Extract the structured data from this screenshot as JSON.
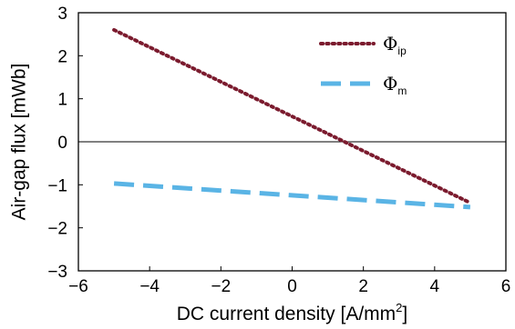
{
  "chart_data": {
    "type": "line",
    "title": "",
    "xlabel": "DC current density [A/mm",
    "xlabel_sup": "2",
    "xlabel_end": "]",
    "ylabel": "Air-gap flux [mWb]",
    "xlim": [
      -6,
      6
    ],
    "ylim": [
      -3,
      3
    ],
    "xticks": [
      -6,
      -4,
      -2,
      0,
      2,
      4,
      6
    ],
    "yticks": [
      -3,
      -2,
      -1,
      0,
      1,
      2,
      3
    ],
    "xtick_labels": [
      "−6",
      "−4",
      "−2",
      "0",
      "2",
      "4",
      "6"
    ],
    "ytick_labels": [
      "−3",
      "−2",
      "−1",
      "0",
      "1",
      "2",
      "3"
    ],
    "grid": false,
    "zero_line": true,
    "legend_position": "top-right",
    "series": [
      {
        "name": "Φ",
        "name_sub": "ip",
        "style": "dotted",
        "color": "#7b1b2e",
        "x": [
          -5,
          5
        ],
        "y": [
          2.6,
          -1.42
        ]
      },
      {
        "name": "Φ",
        "name_sub": "m",
        "style": "dashed",
        "color": "#5ab4e5",
        "x": [
          -5,
          5
        ],
        "y": [
          -0.97,
          -1.52
        ]
      }
    ]
  }
}
